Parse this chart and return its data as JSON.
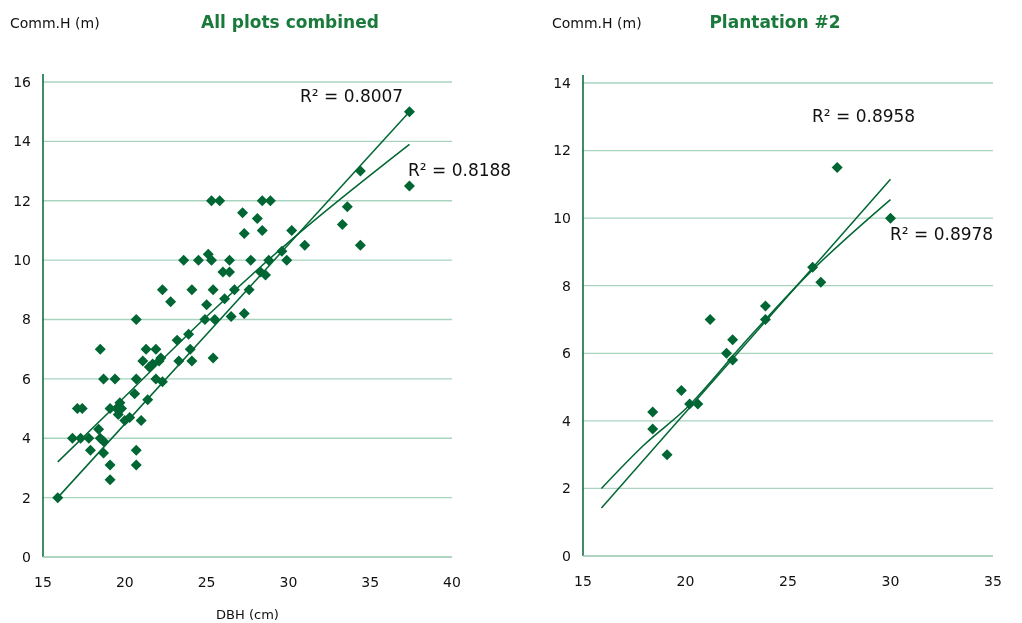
{
  "chart_data": [
    {
      "type": "scatter",
      "title": "All plots combined",
      "xlabel": "DBH (cm)",
      "ylabel": "Comm.H (m)",
      "xlim": [
        15,
        40
      ],
      "xticks": [
        15,
        20,
        25,
        30,
        35,
        40
      ],
      "ylim": [
        0,
        16
      ],
      "yticks": [
        0,
        2,
        4,
        6,
        8,
        10,
        12,
        14,
        16
      ],
      "grid": "y",
      "annotations": [
        "R² = 0.8007",
        "R² = 0.8188"
      ],
      "series": [
        {
          "marker": "diamond",
          "color": "#006633",
          "x": [
            15.9,
            16.8,
            17.1,
            17.4,
            17.3,
            17.9,
            17.8,
            18.5,
            18.4,
            18.5,
            18.7,
            18.7,
            18.7,
            19.1,
            19.1,
            19.1,
            19.4,
            19.5,
            19.6,
            19.7,
            19.8,
            20.0,
            20.3,
            20.6,
            20.7,
            20.7,
            20.7,
            20.7,
            21.0,
            21.1,
            21.3,
            21.4,
            21.5,
            21.7,
            21.9,
            21.9,
            22.2,
            22.3,
            22.3,
            22.1,
            22.8,
            23.2,
            23.3,
            23.6,
            23.9,
            24.0,
            24.1,
            24.1,
            24.5,
            24.9,
            25.0,
            25.1,
            25.3,
            25.3,
            25.4,
            25.4,
            25.5,
            25.8,
            26.0,
            26.1,
            26.4,
            26.4,
            26.5,
            26.7,
            27.2,
            27.3,
            27.3,
            27.7,
            27.6,
            28.1,
            28.4,
            28.3,
            28.4,
            28.6,
            28.8,
            28.9,
            29.6,
            29.9,
            30.2,
            31.0,
            33.3,
            33.6,
            34.4,
            34.4,
            37.4,
            37.4
          ],
          "values": [
            2.0,
            4.0,
            5.0,
            5.0,
            4.0,
            3.6,
            4.0,
            7.0,
            4.3,
            4.0,
            3.9,
            3.5,
            6.0,
            3.1,
            2.6,
            5.0,
            6.0,
            5.0,
            4.8,
            5.2,
            5.0,
            4.6,
            4.7,
            5.5,
            8.0,
            3.6,
            3.1,
            6.0,
            4.6,
            6.6,
            7.0,
            5.3,
            6.4,
            6.5,
            7.0,
            6.0,
            6.7,
            5.9,
            9.0,
            6.6,
            8.6,
            7.3,
            6.6,
            10.0,
            7.5,
            7.0,
            6.6,
            9.0,
            10.0,
            8.0,
            8.5,
            10.2,
            10.0,
            12.0,
            6.7,
            9.0,
            8.0,
            12.0,
            9.6,
            8.7,
            10.0,
            9.6,
            8.1,
            9.0,
            11.6,
            10.9,
            8.2,
            10.0,
            9.0,
            11.4,
            12.0,
            9.6,
            11.0,
            9.5,
            10.0,
            12.0,
            10.3,
            10.0,
            11.0,
            10.5,
            11.2,
            11.8,
            13.0,
            10.5,
            12.5,
            15.0
          ]
        },
        {
          "type": "line",
          "color": "#006633",
          "x": [
            15.9,
            37.4
          ],
          "values": [
            2.0,
            15.0
          ]
        },
        {
          "type": "line",
          "color": "#006633",
          "x": [
            15.9,
            20,
            25,
            30,
            37.4
          ],
          "values": [
            3.2,
            5.4,
            8.1,
            10.6,
            13.9
          ]
        }
      ]
    },
    {
      "type": "scatter",
      "title": "Plantation #2",
      "ylabel": "Comm.H (m)",
      "xlim": [
        15,
        35
      ],
      "xticks": [
        15,
        20,
        25,
        30,
        35
      ],
      "ylim": [
        0,
        14
      ],
      "yticks": [
        0,
        2,
        4,
        6,
        8,
        10,
        12,
        14
      ],
      "grid": "y",
      "annotations": [
        "R² = 0.8958",
        "R² = 0.8978"
      ],
      "series": [
        {
          "marker": "diamond",
          "color": "#006633",
          "x": [
            18.4,
            18.4,
            19.1,
            19.8,
            20.2,
            20.6,
            21.2,
            22.0,
            22.3,
            22.3,
            23.9,
            23.9,
            26.2,
            26.6,
            27.4,
            30.0
          ],
          "values": [
            4.26,
            3.76,
            3.0,
            4.9,
            4.5,
            4.5,
            7.0,
            6.0,
            6.4,
            5.8,
            7.4,
            7.0,
            8.55,
            8.1,
            11.5,
            10.0
          ]
        },
        {
          "type": "line",
          "color": "#006633",
          "x": [
            15.9,
            30.0
          ],
          "values": [
            1.42,
            11.15
          ]
        },
        {
          "type": "line",
          "color": "#006633",
          "x": [
            15.9,
            18,
            20,
            23,
            26,
            30
          ],
          "values": [
            2.0,
            3.3,
            4.35,
            6.4,
            8.35,
            10.55
          ]
        }
      ]
    }
  ]
}
